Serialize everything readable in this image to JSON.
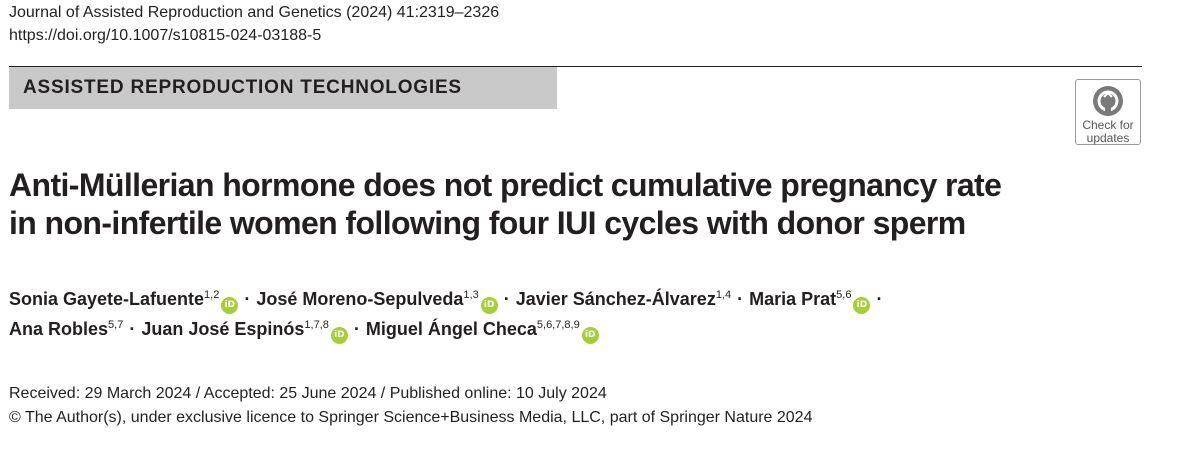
{
  "header": {
    "journal_ref": "Journal of Assisted Reproduction and Genetics (2024) 41:2319–2326",
    "doi": "https://doi.org/10.1007/s10815-024-03188-5"
  },
  "section": {
    "label": "ASSISTED REPRODUCTION TECHNOLOGIES"
  },
  "check_updates": {
    "line1": "Check for",
    "line2": "updates",
    "icon": "crossmark-icon"
  },
  "title": {
    "line1": "Anti-Müllerian hormone does not predict cumulative pregnancy rate",
    "line2": "in non-infertile women following four IUI cycles with donor sperm"
  },
  "authors": [
    {
      "name": "Sonia Gayete-Lafuente",
      "affil": "1,2",
      "orcid": true
    },
    {
      "name": "José Moreno-Sepulveda",
      "affil": "1,3",
      "orcid": true
    },
    {
      "name": "Javier Sánchez-Álvarez",
      "affil": "1,4",
      "orcid": false
    },
    {
      "name": "Maria Prat",
      "affil": "5,6",
      "orcid": true
    },
    {
      "name": "Ana Robles",
      "affil": "5,7",
      "orcid": false
    },
    {
      "name": "Juan José Espinós",
      "affil": "1,7,8",
      "orcid": true
    },
    {
      "name": "Miguel Ángel Checa",
      "affil": "5,6,7,8,9",
      "orcid": true
    }
  ],
  "separator": "·",
  "orcid_label": "iD",
  "dates": "Received: 29 March 2024 / Accepted: 25 June 2024 / Published online: 10 July 2024",
  "copyright": "© The Author(s), under exclusive licence to Springer Science+Business Media, LLC, part of Springer Nature 2024",
  "colors": {
    "section_band": "#c9c9c9",
    "orcid_green": "#a6ce39",
    "text": "#231f20"
  }
}
